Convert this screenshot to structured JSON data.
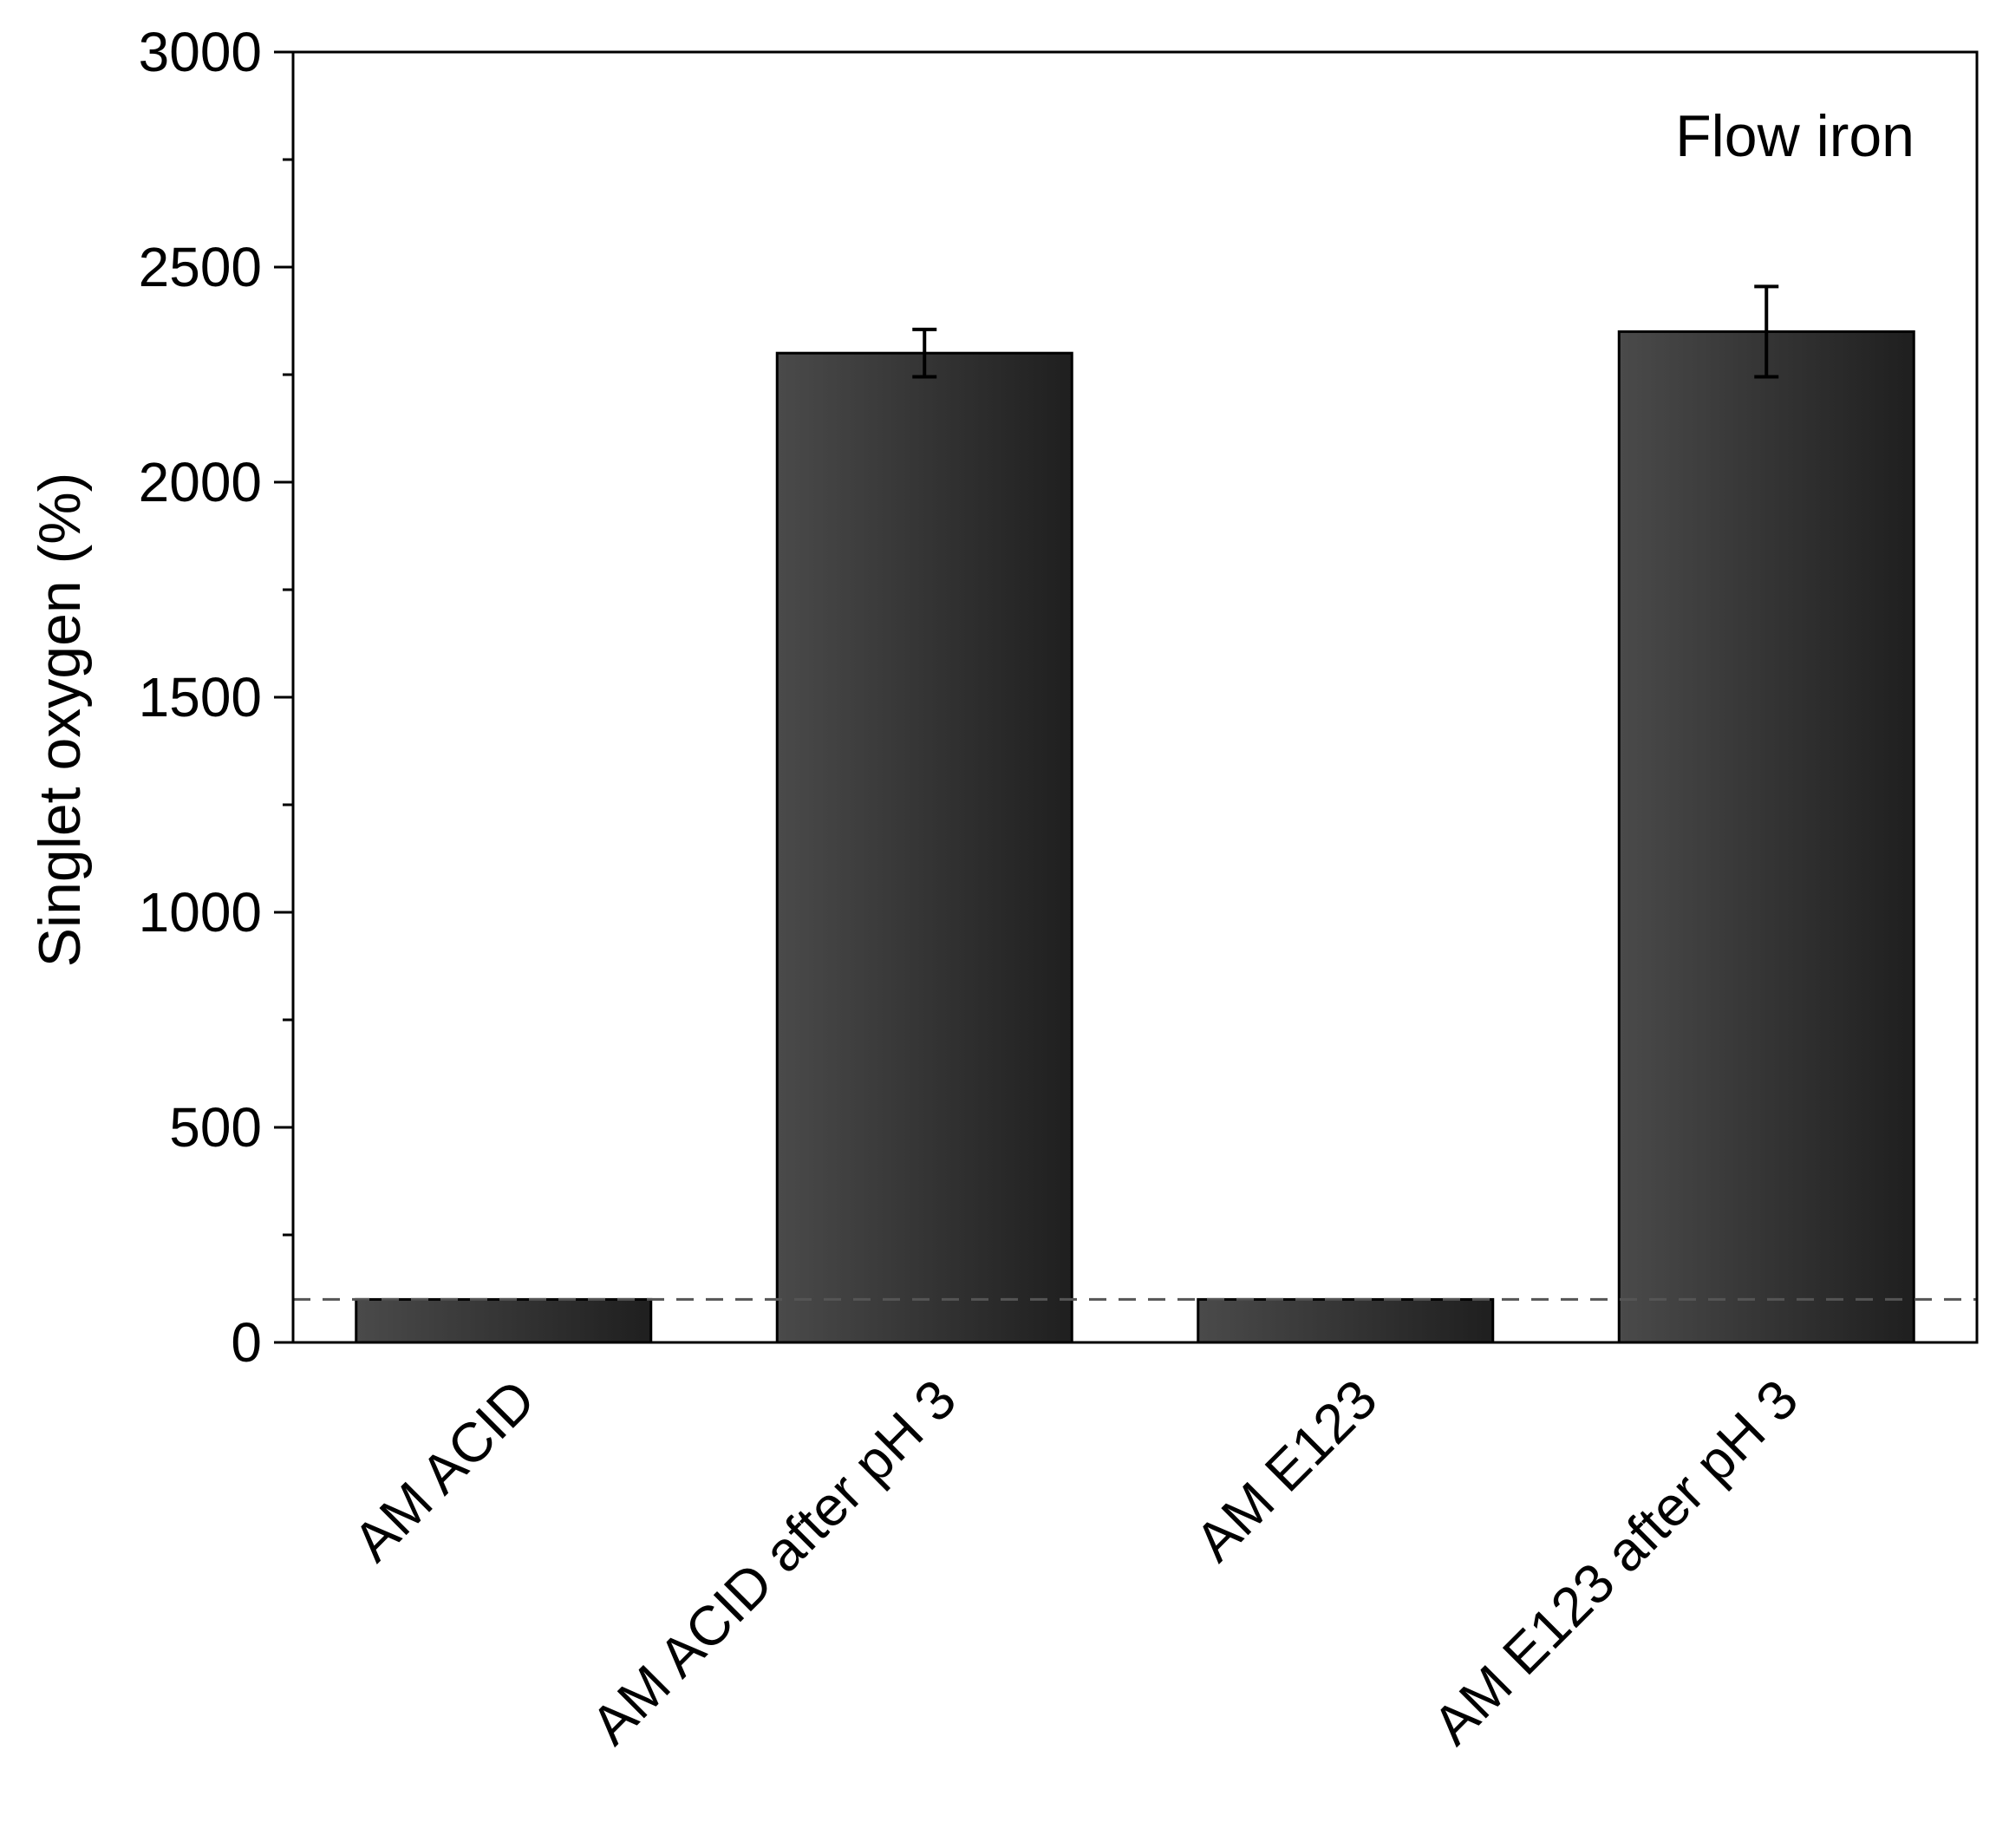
{
  "chart_data": {
    "type": "bar",
    "title": "",
    "annotation": "Flow iron",
    "xlabel": "",
    "ylabel": "Singlet oxygen (%)",
    "ylim": [
      0,
      3000
    ],
    "yticks": [
      0,
      500,
      1000,
      1500,
      2000,
      2500,
      3000
    ],
    "yminor_step": 250,
    "categories": [
      "AM ACID",
      "AM ACID after pH 3",
      "AM E123",
      "AM E123 after pH 3"
    ],
    "values": [
      100,
      2300,
      100,
      2350
    ],
    "errors": [
      0,
      55,
      0,
      105
    ],
    "reference_line": 100,
    "grid": false,
    "colors": {
      "bar_light": "#4a4a4a",
      "bar_dark": "#1f1f1f",
      "reference_line": "#555555",
      "axis": "#000000"
    }
  }
}
